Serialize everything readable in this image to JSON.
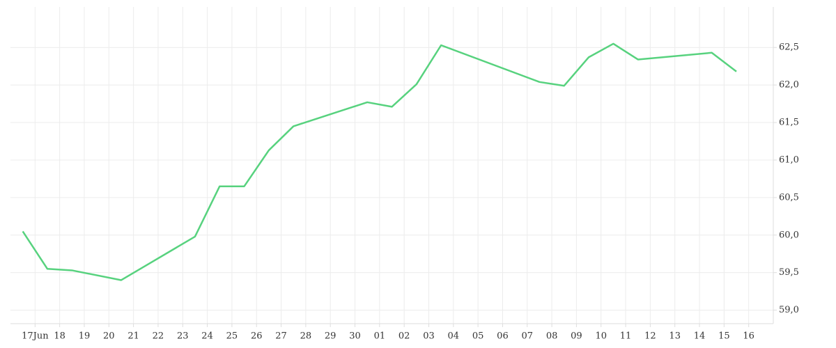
{
  "chart_data": {
    "type": "line",
    "x": [
      -0.5,
      0.5,
      1.5,
      3.5,
      6.5,
      7.5,
      8.5,
      9.5,
      10.5,
      13.5,
      14.5,
      15.5,
      16.5,
      20.5,
      21.5,
      22.5,
      23.5,
      24.5,
      27.5,
      28.5
    ],
    "values": [
      60.05,
      59.55,
      59.53,
      59.4,
      59.98,
      60.65,
      60.65,
      61.13,
      61.45,
      61.77,
      61.71,
      62.01,
      62.53,
      62.04,
      61.99,
      62.37,
      62.55,
      62.34,
      62.43,
      62.18
    ],
    "color": "#57d27e",
    "xlim": [
      -1,
      30
    ],
    "xticks": [
      {
        "value": 0,
        "label": "17Jun"
      },
      {
        "value": 1,
        "label": "18"
      },
      {
        "value": 2,
        "label": "19"
      },
      {
        "value": 3,
        "label": "20"
      },
      {
        "value": 4,
        "label": "21"
      },
      {
        "value": 5,
        "label": "22"
      },
      {
        "value": 6,
        "label": "23"
      },
      {
        "value": 7,
        "label": "24"
      },
      {
        "value": 8,
        "label": "25"
      },
      {
        "value": 9,
        "label": "26"
      },
      {
        "value": 10,
        "label": "27"
      },
      {
        "value": 11,
        "label": "28"
      },
      {
        "value": 12,
        "label": "29"
      },
      {
        "value": 13,
        "label": "30"
      },
      {
        "value": 14,
        "label": "01"
      },
      {
        "value": 15,
        "label": "02"
      },
      {
        "value": 16,
        "label": "03"
      },
      {
        "value": 17,
        "label": "04"
      },
      {
        "value": 18,
        "label": "05"
      },
      {
        "value": 19,
        "label": "06"
      },
      {
        "value": 20,
        "label": "07"
      },
      {
        "value": 21,
        "label": "08"
      },
      {
        "value": 22,
        "label": "09"
      },
      {
        "value": 23,
        "label": "10"
      },
      {
        "value": 24,
        "label": "11"
      },
      {
        "value": 25,
        "label": "12"
      },
      {
        "value": 26,
        "label": "13"
      },
      {
        "value": 27,
        "label": "14"
      },
      {
        "value": 28,
        "label": "15"
      },
      {
        "value": 29,
        "label": "16"
      }
    ],
    "ylim": [
      58.82,
      63.04
    ],
    "yticks": [
      {
        "value": 59,
        "label": "59,0"
      },
      {
        "value": 59.5,
        "label": "59,5"
      },
      {
        "value": 60,
        "label": "60,0"
      },
      {
        "value": 60.5,
        "label": "60,5"
      },
      {
        "value": 61,
        "label": "61,0"
      },
      {
        "value": 61.5,
        "label": "61,5"
      },
      {
        "value": 62,
        "label": "62,0"
      },
      {
        "value": 62.5,
        "label": "62,5"
      }
    ],
    "grid": true
  }
}
